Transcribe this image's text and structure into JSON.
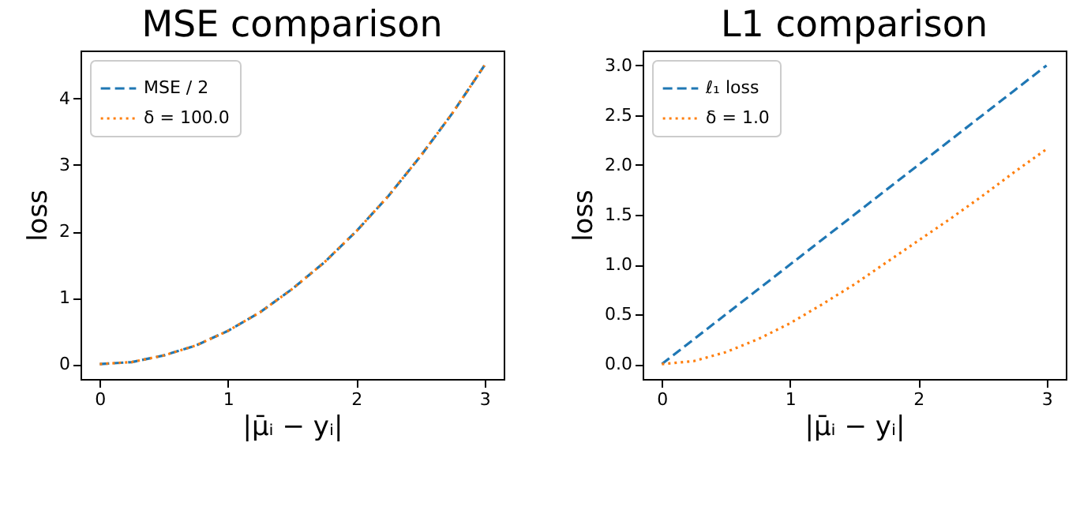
{
  "chart_data": [
    {
      "type": "line",
      "title": "MSE comparison",
      "xlabel": "|μ̄ᵢ − yᵢ|",
      "ylabel": "loss",
      "x": [
        0,
        0.25,
        0.5,
        0.75,
        1,
        1.25,
        1.5,
        1.75,
        2,
        2.25,
        2.5,
        2.75,
        3
      ],
      "series": [
        {
          "name": "MSE / 2",
          "color": "#1f77b4",
          "line_style": "dashed",
          "values": [
            0,
            0.03,
            0.13,
            0.28,
            0.5,
            0.78,
            1.13,
            1.53,
            2,
            2.53,
            3.13,
            3.78,
            4.5
          ]
        },
        {
          "name": "δ = 100.0",
          "color": "#ff7f0e",
          "line_style": "dotted",
          "values": [
            0,
            0.03,
            0.13,
            0.28,
            0.5,
            0.78,
            1.13,
            1.53,
            2,
            2.53,
            3.13,
            3.78,
            4.5
          ]
        }
      ],
      "xlim": [
        -0.15,
        3.15
      ],
      "xticks": [
        0,
        1,
        2,
        3
      ],
      "ylim": [
        -0.225,
        4.725
      ],
      "yticks": [
        0,
        1,
        2,
        3,
        4
      ],
      "grid": false,
      "legend": "top left"
    },
    {
      "type": "line",
      "title": "L1 comparison",
      "xlabel": "|μ̄ᵢ − yᵢ|",
      "ylabel": "loss",
      "x": [
        0,
        0.25,
        0.5,
        0.75,
        1,
        1.25,
        1.5,
        1.75,
        2,
        2.25,
        2.5,
        2.75,
        3
      ],
      "series": [
        {
          "name": "ℓ₁ loss",
          "color": "#1f77b4",
          "line_style": "dashed",
          "values": [
            0,
            0.25,
            0.5,
            0.75,
            1,
            1.25,
            1.5,
            1.75,
            2,
            2.25,
            2.5,
            2.75,
            3
          ]
        },
        {
          "name": "δ = 1.0",
          "color": "#ff7f0e",
          "line_style": "dotted",
          "values": [
            0,
            0.03,
            0.12,
            0.25,
            0.41,
            0.6,
            0.8,
            1.02,
            1.24,
            1.46,
            1.69,
            1.93,
            2.16
          ]
        }
      ],
      "xlim": [
        -0.15,
        3.15
      ],
      "xticks": [
        0,
        1,
        2,
        3
      ],
      "ylim": [
        -0.15,
        3.15
      ],
      "yticks": [
        {
          "value": 0,
          "label": "0.0"
        },
        0.5,
        {
          "value": 1,
          "label": "1.0"
        },
        1.5,
        {
          "value": 2,
          "label": "2.0"
        },
        2.5,
        {
          "value": 3,
          "label": "3.0"
        }
      ],
      "grid": false,
      "legend": "top left"
    }
  ]
}
